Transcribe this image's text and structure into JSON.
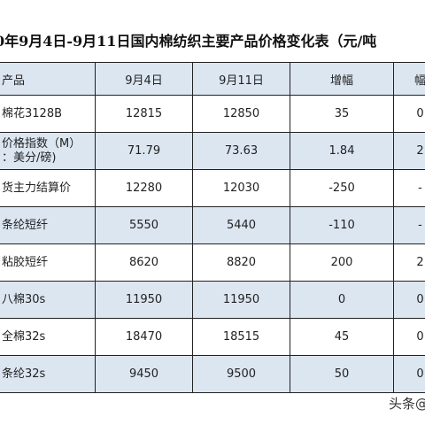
{
  "title": "0年9月4日-9月11日国内棉纺织主要产品价格变化表（元/吨",
  "table": {
    "header": [
      "产品",
      "9月4日",
      "9月11日",
      "增幅",
      "幅"
    ],
    "rows": [
      [
        [
          "棉花3128B"
        ],
        12815,
        12850,
        35,
        "0"
      ],
      [
        [
          "价格指数（M）",
          "：美分/磅)"
        ],
        71.79,
        73.63,
        1.84,
        "2"
      ],
      [
        [
          "货主力结算价"
        ],
        12280,
        12030,
        -250,
        "-"
      ],
      [
        [
          "条纶短纤"
        ],
        5550,
        5440,
        -110,
        "-"
      ],
      [
        [
          "粘胶短纤"
        ],
        8620,
        8820,
        200,
        "2"
      ],
      [
        [
          "八棉30s"
        ],
        11950,
        11950,
        0,
        "0"
      ],
      [
        [
          "全棉32s"
        ],
        18470,
        18515,
        45,
        "0"
      ],
      [
        [
          "条纶32s"
        ],
        9450,
        9500,
        50,
        "0"
      ]
    ]
  },
  "watermark": "头条@"
}
